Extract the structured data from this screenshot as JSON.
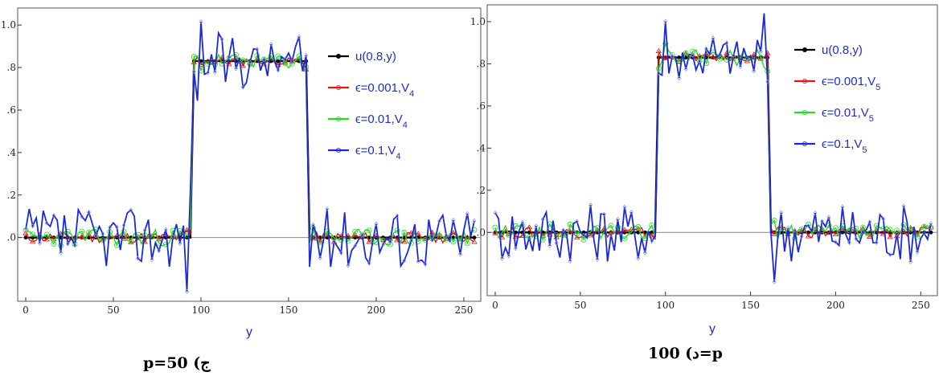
{
  "chart_data": [
    {
      "type": "line",
      "caption": "p=50 (ج",
      "xlabel": "y",
      "xlim": [
        0,
        256
      ],
      "ylim": [
        -0.3,
        1.08
      ],
      "x_ticks": [
        "0",
        "50",
        "100",
        "150",
        "200",
        "250"
      ],
      "y_ticks": [
        ".0",
        ".2",
        ".4",
        ".6",
        ".8",
        "1.0"
      ],
      "series": [
        {
          "name": "u(0.8,y)",
          "color": "#000000",
          "marker": "dot",
          "noise": 0.0,
          "seed": 1
        },
        {
          "name": "ϵ=0.001,V",
          "sub": "4",
          "color": "#e01818",
          "marker": "triangle",
          "noise": 0.025,
          "seed": 11
        },
        {
          "name": "ϵ=0.01,V",
          "sub": "4",
          "color": "#22dd22",
          "marker": "circle",
          "noise": 0.04,
          "seed": 23
        },
        {
          "name": "ϵ=0.1,V",
          "sub": "4",
          "color": "#1a2ad8",
          "marker": "diamond",
          "noise": 0.14,
          "seed": 37
        }
      ]
    },
    {
      "type": "line",
      "caption": "د) 100=p",
      "xlabel": "y",
      "xlim": [
        0,
        256
      ],
      "ylim": [
        -0.3,
        1.08
      ],
      "x_ticks": [
        "0",
        "50",
        "100",
        "150",
        "200",
        "250"
      ],
      "y_ticks": [
        ".0",
        ".2",
        ".4",
        ".6",
        ".8",
        "1.0"
      ],
      "series": [
        {
          "name": "u(0.8,y)",
          "color": "#000000",
          "marker": "dot",
          "noise": 0.0,
          "seed": 2
        },
        {
          "name": "ϵ=0.001,V",
          "sub": "5",
          "color": "#e01818",
          "marker": "triangle",
          "noise": 0.025,
          "seed": 13
        },
        {
          "name": "ϵ=0.01,V",
          "sub": "5",
          "color": "#22dd22",
          "marker": "circle",
          "noise": 0.04,
          "seed": 29
        },
        {
          "name": "ϵ=0.1,V",
          "sub": "5",
          "color": "#1a2ad8",
          "marker": "diamond",
          "noise": 0.14,
          "seed": 41
        }
      ]
    }
  ],
  "exact_solution": {
    "low": 0.0,
    "high": 0.83,
    "step_up_at": 96,
    "step_down_at": 161
  }
}
